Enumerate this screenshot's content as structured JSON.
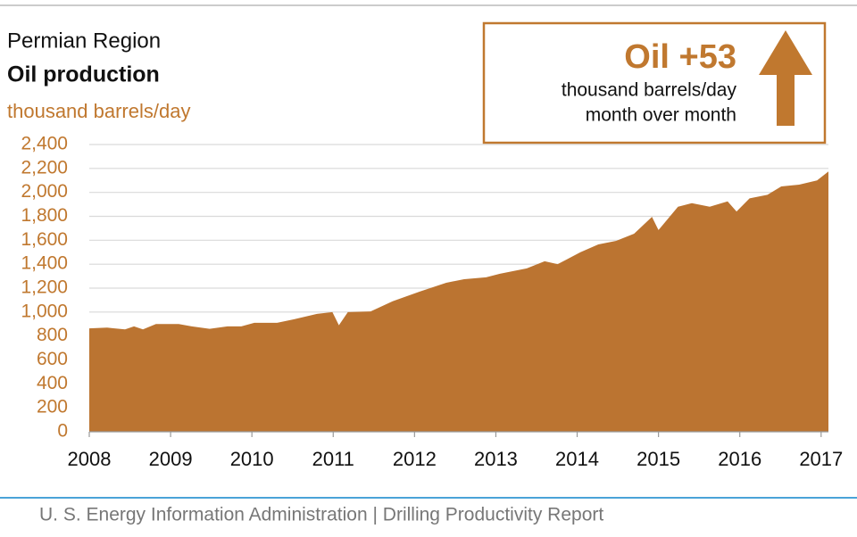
{
  "chart_data": {
    "type": "area",
    "title": "Permian Region",
    "subtitle": "Oil production",
    "y_label": "thousand barrels/day",
    "callout": {
      "headline": "Oil +53",
      "line1": "thousand barrels/day",
      "line2": "month over month"
    },
    "footer": "U. S. Energy Information Administration  |  Drilling Productivity Report",
    "color": "#bb7431",
    "x": [
      2008.0,
      2008.22,
      2008.44,
      2008.55,
      2008.66,
      2008.82,
      2009.1,
      2009.26,
      2009.48,
      2009.7,
      2009.87,
      2010.03,
      2010.31,
      2010.52,
      2010.8,
      2010.99,
      2011.07,
      2011.18,
      2011.46,
      2011.73,
      2012.06,
      2012.39,
      2012.61,
      2012.88,
      2013.05,
      2013.38,
      2013.6,
      2013.76,
      2014.04,
      2014.26,
      2014.48,
      2014.7,
      2014.92,
      2015.0,
      2015.24,
      2015.41,
      2015.63,
      2015.85,
      2015.96,
      2016.12,
      2016.34,
      2016.51,
      2016.73,
      2016.95,
      2017.09
    ],
    "values": [
      864,
      870,
      855,
      880,
      855,
      900,
      900,
      880,
      860,
      880,
      880,
      910,
      910,
      940,
      985,
      1000,
      890,
      1000,
      1005,
      1090,
      1170,
      1245,
      1275,
      1290,
      1320,
      1365,
      1425,
      1400,
      1500,
      1565,
      1595,
      1655,
      1795,
      1685,
      1880,
      1910,
      1880,
      1925,
      1840,
      1950,
      1980,
      2050,
      2065,
      2100,
      2175
    ],
    "xlim": [
      2008,
      2017.09
    ],
    "xticks": [
      2008,
      2009,
      2010,
      2011,
      2012,
      2013,
      2014,
      2015,
      2016,
      2017
    ],
    "ylim": [
      0,
      2400
    ],
    "yticks": [
      0,
      200,
      400,
      600,
      800,
      {
        "value": 1000,
        "label": "1,000"
      },
      {
        "value": 1200,
        "label": "1,200"
      },
      {
        "value": 1400,
        "label": "1,400"
      },
      {
        "value": 1600,
        "label": "1,600"
      },
      {
        "value": 1800,
        "label": "1,800"
      },
      {
        "value": 2000,
        "label": "2,000"
      },
      {
        "value": 2200,
        "label": "2,200"
      },
      {
        "value": 2400,
        "label": "2,400"
      }
    ],
    "grid": true
  }
}
